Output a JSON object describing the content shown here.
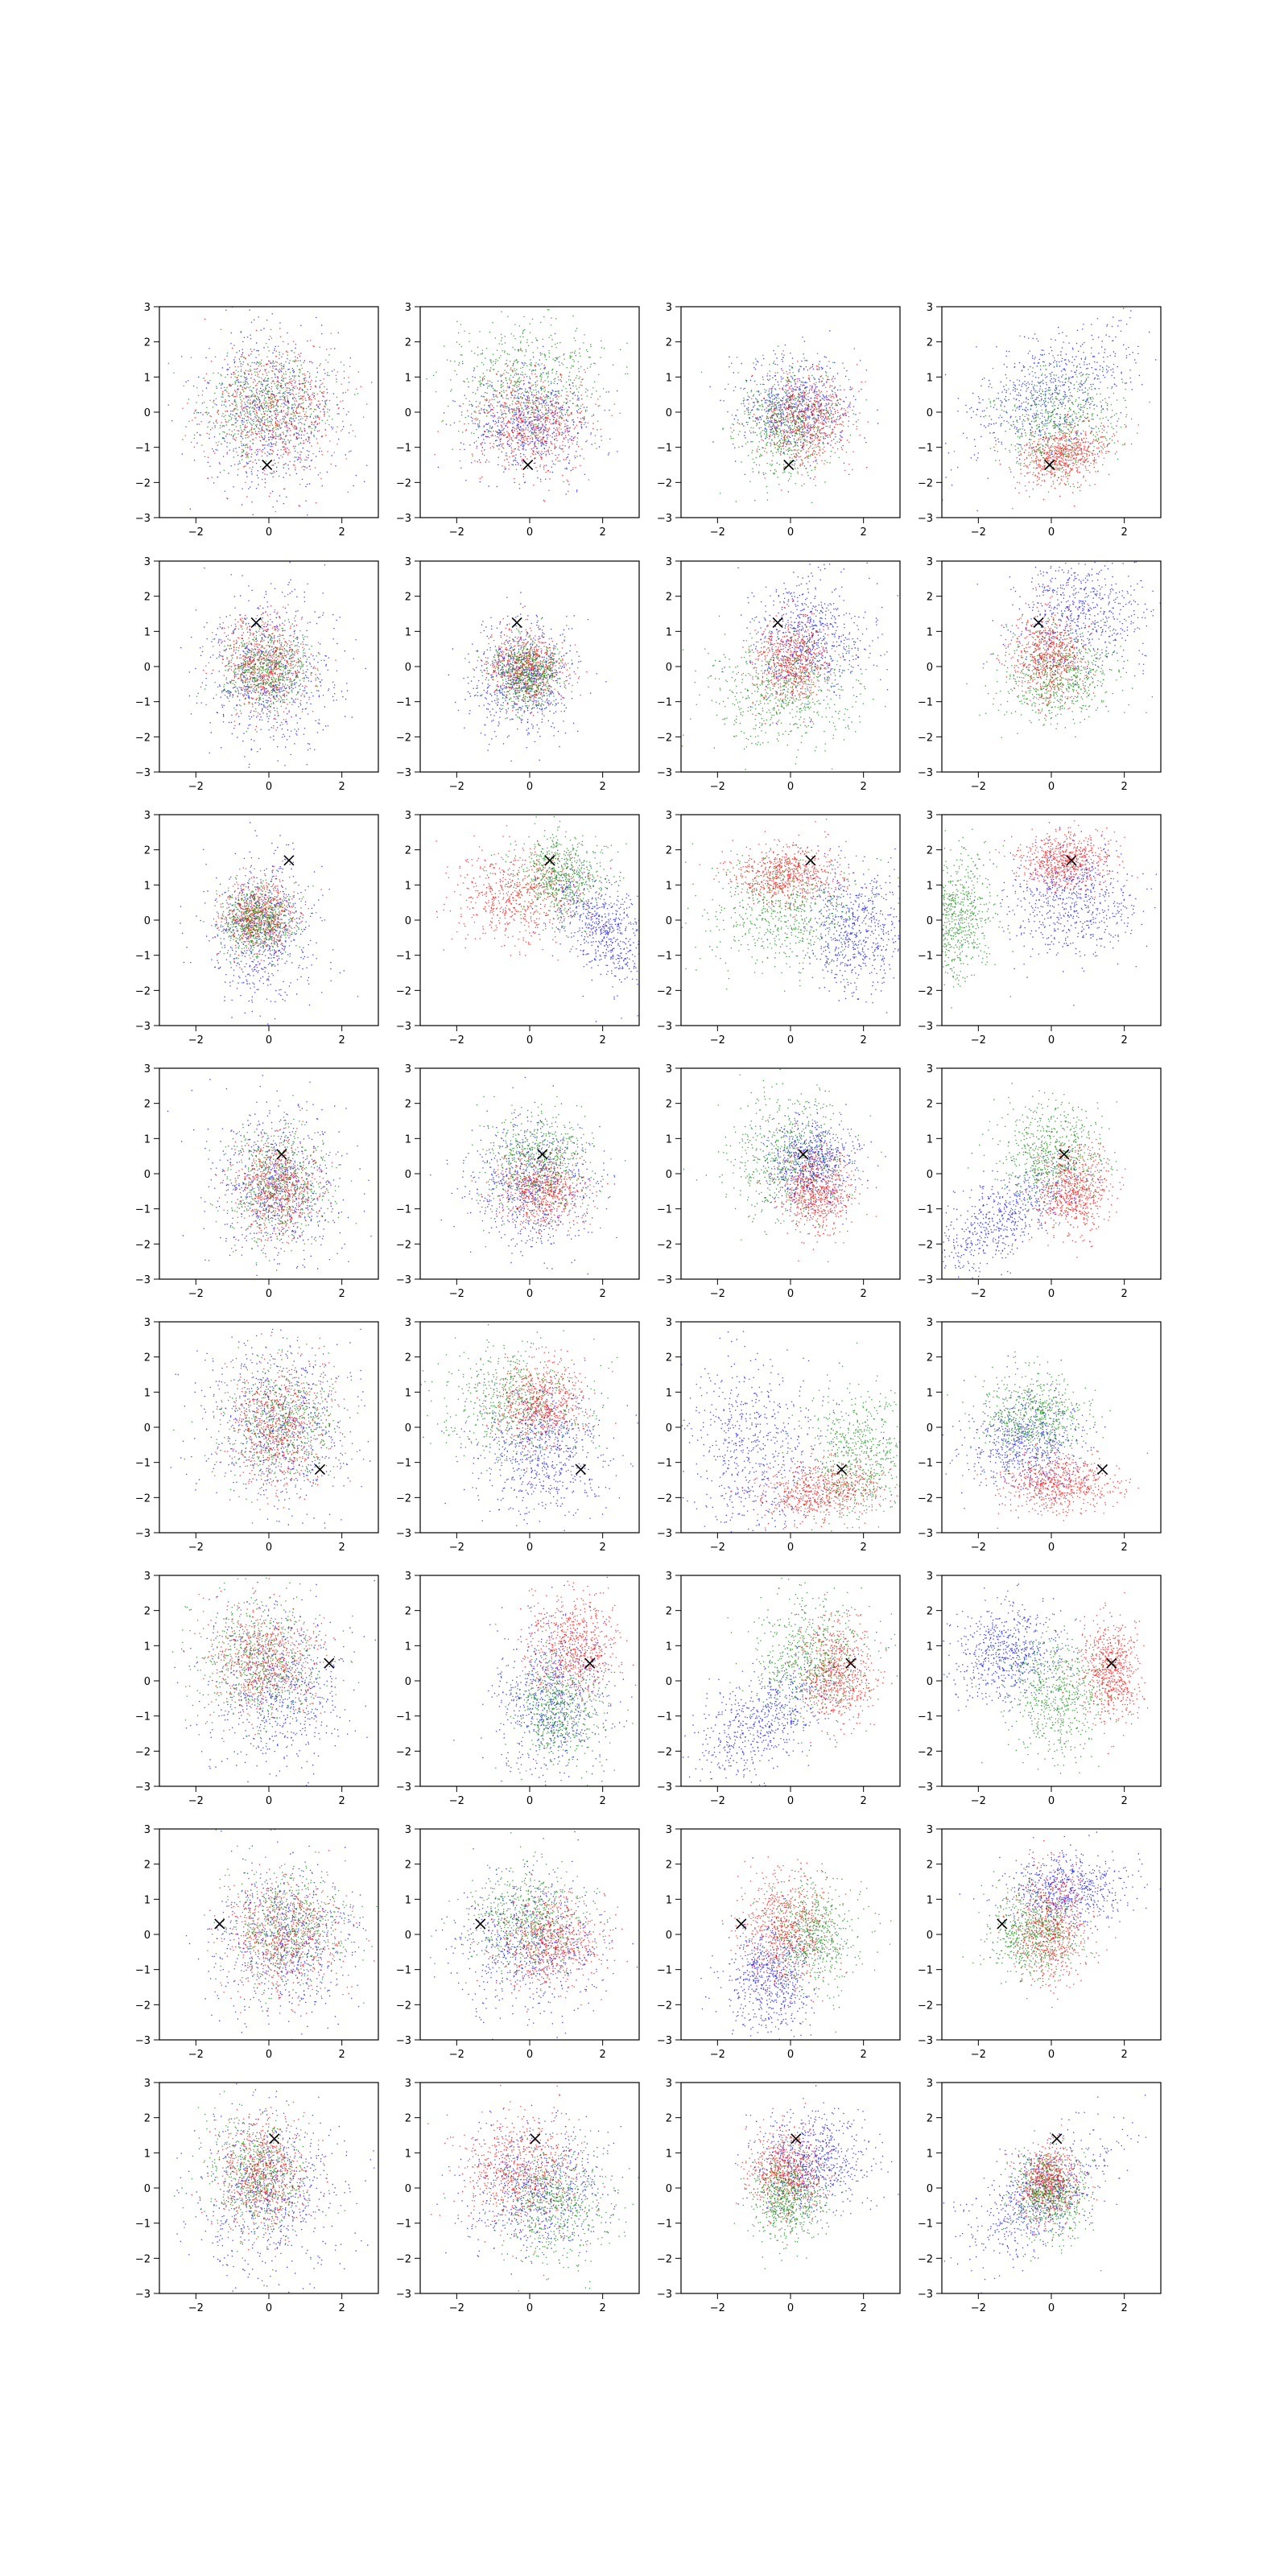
{
  "chart_data": {
    "type": "scatter",
    "grid": false,
    "legend": "none",
    "rows": 8,
    "cols": 4,
    "xlim": [
      -3,
      3
    ],
    "ylim": [
      -3,
      3
    ],
    "xticks": [
      -2,
      0,
      2
    ],
    "yticks": [
      -3,
      -2,
      -1,
      0,
      1,
      2,
      3
    ],
    "xtick_labels": [
      "−2",
      "0",
      "2"
    ],
    "ytick_labels": [
      "−3",
      "−2",
      "−1",
      "0",
      "1",
      "2",
      "3"
    ],
    "colors": {
      "blue": "#0000ff",
      "green": "#008000",
      "red": "#ff0000",
      "marker": "#000000"
    },
    "marker_symbol": "×",
    "marker_points": [
      {
        "x": -0.05,
        "y": -1.5
      },
      {
        "x": -0.35,
        "y": 1.25
      },
      {
        "x": 0.55,
        "y": 1.7
      },
      {
        "x": 0.35,
        "y": 0.55
      },
      {
        "x": 1.4,
        "y": -1.2
      },
      {
        "x": 1.65,
        "y": 0.5
      },
      {
        "x": -1.35,
        "y": 0.3
      },
      {
        "x": 0.15,
        "y": 1.4
      }
    ],
    "points_per_cloud": 650,
    "panels": [
      [
        [
          {
            "color": "blue",
            "mx": 0,
            "my": 0,
            "sx": 1,
            "sy": 1.2,
            "rho": 0
          },
          {
            "color": "green",
            "mx": -0.1,
            "my": 0.2,
            "sx": 0.9,
            "sy": 0.8,
            "rho": 0
          },
          {
            "color": "red",
            "mx": 0.2,
            "my": 0,
            "sx": 0.9,
            "sy": 0.9,
            "rho": 0
          }
        ],
        [
          {
            "color": "green",
            "mx": 0,
            "my": 0.9,
            "sx": 1.1,
            "sy": 0.9,
            "rho": 0
          },
          {
            "color": "blue",
            "mx": 0,
            "my": -0.3,
            "sx": 0.9,
            "sy": 0.8,
            "rho": 0
          },
          {
            "color": "red",
            "mx": 0,
            "my": -0.3,
            "sx": 0.8,
            "sy": 0.7,
            "rho": 0
          }
        ],
        [
          {
            "color": "blue",
            "mx": 0.1,
            "my": 0.2,
            "sx": 0.8,
            "sy": 0.7,
            "rho": 0
          },
          {
            "color": "red",
            "mx": 0.4,
            "my": -0.2,
            "sx": 0.6,
            "sy": 0.7,
            "rho": 0
          },
          {
            "color": "green",
            "mx": -0.1,
            "my": -0.3,
            "sx": 0.7,
            "sy": 0.8,
            "rho": 0
          }
        ],
        [
          {
            "color": "blue",
            "mx": 0,
            "my": 0.6,
            "sx": 1.1,
            "sy": 0.9,
            "rho": 0.5
          },
          {
            "color": "green",
            "mx": 0.2,
            "my": -0.3,
            "sx": 0.8,
            "sy": 0.8,
            "rho": 0
          },
          {
            "color": "red",
            "mx": 0.3,
            "my": -1.2,
            "sx": 0.6,
            "sy": 0.4,
            "rho": 0.3
          }
        ]
      ],
      [
        [
          {
            "color": "blue",
            "mx": 0,
            "my": -0.2,
            "sx": 0.9,
            "sy": 1.1,
            "rho": 0
          },
          {
            "color": "red",
            "mx": -0.1,
            "my": 0.1,
            "sx": 0.6,
            "sy": 0.7,
            "rho": 0
          },
          {
            "color": "green",
            "mx": -0.1,
            "my": -0.1,
            "sx": 0.6,
            "sy": 0.6,
            "rho": 0
          }
        ],
        [
          {
            "color": "blue",
            "mx": -0.2,
            "my": -0.3,
            "sx": 0.7,
            "sy": 0.8,
            "rho": 0
          },
          {
            "color": "red",
            "mx": -0.1,
            "my": 0,
            "sx": 0.5,
            "sy": 0.5,
            "rho": 0
          },
          {
            "color": "green",
            "mx": -0.1,
            "my": -0.2,
            "sx": 0.5,
            "sy": 0.5,
            "rho": 0
          }
        ],
        [
          {
            "color": "blue",
            "mx": 0.5,
            "my": 0.9,
            "sx": 0.8,
            "sy": 0.8,
            "rho": 0
          },
          {
            "color": "green",
            "mx": -0.3,
            "my": -0.6,
            "sx": 1,
            "sy": 0.8,
            "rho": 0
          },
          {
            "color": "red",
            "mx": 0,
            "my": 0.2,
            "sx": 0.5,
            "sy": 0.6,
            "rho": 0
          }
        ],
        [
          {
            "color": "blue",
            "mx": 0.8,
            "my": 1.5,
            "sx": 0.9,
            "sy": 0.8,
            "rho": 0
          },
          {
            "color": "green",
            "mx": 0.2,
            "my": -0.3,
            "sx": 0.8,
            "sy": 0.7,
            "rho": 0
          },
          {
            "color": "red",
            "mx": -0.1,
            "my": 0.3,
            "sx": 0.5,
            "sy": 0.6,
            "rho": 0
          }
        ]
      ],
      [
        [
          {
            "color": "blue",
            "mx": -0.2,
            "my": -0.3,
            "sx": 0.7,
            "sy": 1.1,
            "rho": 0
          },
          {
            "color": "red",
            "mx": -0.3,
            "my": 0.1,
            "sx": 0.5,
            "sy": 0.5,
            "rho": 0
          },
          {
            "color": "green",
            "mx": -0.3,
            "my": 0,
            "sx": 0.5,
            "sy": 0.5,
            "rho": 0
          }
        ],
        [
          {
            "color": "blue",
            "mx": 2,
            "my": -0.2,
            "sx": 0.7,
            "sy": 0.8,
            "rho": -0.5
          },
          {
            "color": "red",
            "mx": -0.3,
            "my": 0.7,
            "sx": 0.9,
            "sy": 0.7,
            "rho": 0
          },
          {
            "color": "green",
            "mx": 0.8,
            "my": 1.3,
            "sx": 0.6,
            "sy": 0.6,
            "rho": 0
          }
        ],
        [
          {
            "color": "blue",
            "mx": 1.8,
            "my": -0.3,
            "sx": 0.7,
            "sy": 0.9,
            "rho": 0
          },
          {
            "color": "green",
            "mx": -0.2,
            "my": 0.2,
            "sx": 1.1,
            "sy": 0.8,
            "rho": 0
          },
          {
            "color": "red",
            "mx": -0.1,
            "my": 1.3,
            "sx": 0.7,
            "sy": 0.4,
            "rho": 0
          }
        ],
        [
          {
            "color": "green",
            "mx": -2.6,
            "my": 0.1,
            "sx": 0.5,
            "sy": 0.9,
            "rho": 0
          },
          {
            "color": "blue",
            "mx": 0.6,
            "my": 0.6,
            "sx": 0.9,
            "sy": 0.8,
            "rho": 0
          },
          {
            "color": "red",
            "mx": 0.4,
            "my": 1.7,
            "sx": 0.6,
            "sy": 0.4,
            "rho": 0
          }
        ]
      ],
      [
        [
          {
            "color": "blue",
            "mx": 0.2,
            "my": -0.3,
            "sx": 0.9,
            "sy": 1.1,
            "rho": 0
          },
          {
            "color": "green",
            "mx": 0.2,
            "my": -0.3,
            "sx": 0.7,
            "sy": 0.8,
            "rho": 0
          },
          {
            "color": "red",
            "mx": 0.2,
            "my": -0.4,
            "sx": 0.6,
            "sy": 0.7,
            "rho": 0
          }
        ],
        [
          {
            "color": "blue",
            "mx": 0,
            "my": -0.3,
            "sx": 0.9,
            "sy": 0.9,
            "rho": 0
          },
          {
            "color": "green",
            "mx": 0.2,
            "my": 0.3,
            "sx": 0.7,
            "sy": 0.7,
            "rho": 0
          },
          {
            "color": "red",
            "mx": 0.3,
            "my": -0.5,
            "sx": 0.6,
            "sy": 0.5,
            "rho": 0
          }
        ],
        [
          {
            "color": "green",
            "mx": -0.1,
            "my": 0.4,
            "sx": 0.8,
            "sy": 0.9,
            "rho": 0
          },
          {
            "color": "blue",
            "mx": 0.6,
            "my": 0.3,
            "sx": 0.6,
            "sy": 0.6,
            "rho": 0
          },
          {
            "color": "red",
            "mx": 0.7,
            "my": -0.5,
            "sx": 0.5,
            "sy": 0.6,
            "rho": 0
          }
        ],
        [
          {
            "color": "blue",
            "mx": -1.3,
            "my": -1.2,
            "sx": 1,
            "sy": 0.8,
            "rho": 0.7
          },
          {
            "color": "green",
            "mx": 0,
            "my": 0.6,
            "sx": 0.7,
            "sy": 0.7,
            "rho": 0
          },
          {
            "color": "red",
            "mx": 0.6,
            "my": -0.5,
            "sx": 0.5,
            "sy": 0.6,
            "rho": 0
          }
        ]
      ],
      [
        [
          {
            "color": "blue",
            "mx": 0.3,
            "my": 0,
            "sx": 1,
            "sy": 1.2,
            "rho": 0
          },
          {
            "color": "green",
            "mx": 0.3,
            "my": 0.2,
            "sx": 0.8,
            "sy": 0.9,
            "rho": 0
          },
          {
            "color": "red",
            "mx": 0.2,
            "my": 0,
            "sx": 0.7,
            "sy": 0.9,
            "rho": 0
          }
        ],
        [
          {
            "color": "green",
            "mx": -0.4,
            "my": 0.7,
            "sx": 1,
            "sy": 0.8,
            "rho": 0
          },
          {
            "color": "blue",
            "mx": 0.4,
            "my": -0.7,
            "sx": 0.9,
            "sy": 0.9,
            "rho": 0
          },
          {
            "color": "red",
            "mx": 0.3,
            "my": 0.7,
            "sx": 0.6,
            "sy": 0.6,
            "rho": 0
          }
        ],
        [
          {
            "color": "blue",
            "mx": -1,
            "my": -0.5,
            "sx": 1,
            "sy": 1.3,
            "rho": 0
          },
          {
            "color": "green",
            "mx": 1.8,
            "my": -0.8,
            "sx": 0.7,
            "sy": 0.9,
            "rho": 0
          },
          {
            "color": "red",
            "mx": 0.8,
            "my": -1.8,
            "sx": 0.8,
            "sy": 0.4,
            "rho": 0.2
          }
        ],
        [
          {
            "color": "blue",
            "mx": -0.7,
            "my": -0.5,
            "sx": 0.8,
            "sy": 0.7,
            "rho": 0
          },
          {
            "color": "green",
            "mx": -0.5,
            "my": 0.3,
            "sx": 0.7,
            "sy": 0.6,
            "rho": 0
          },
          {
            "color": "red",
            "mx": 0.2,
            "my": -1.6,
            "sx": 0.8,
            "sy": 0.4,
            "rho": 0
          }
        ]
      ],
      [
        [
          {
            "color": "blue",
            "mx": 0.2,
            "my": -0.3,
            "sx": 1,
            "sy": 1.2,
            "rho": 0
          },
          {
            "color": "green",
            "mx": -0.2,
            "my": 0.5,
            "sx": 0.8,
            "sy": 0.9,
            "rho": 0
          },
          {
            "color": "red",
            "mx": -0.2,
            "my": 0.6,
            "sx": 0.7,
            "sy": 0.8,
            "rho": 0
          }
        ],
        [
          {
            "color": "blue",
            "mx": 0.6,
            "my": -0.5,
            "sx": 0.8,
            "sy": 1.1,
            "rho": 0
          },
          {
            "color": "green",
            "mx": 0.7,
            "my": -0.8,
            "sx": 0.6,
            "sy": 0.8,
            "rho": 0
          },
          {
            "color": "red",
            "mx": 1.2,
            "my": 1,
            "sx": 0.6,
            "sy": 0.7,
            "rho": 0
          }
        ],
        [
          {
            "color": "blue",
            "mx": -0.7,
            "my": -1.1,
            "sx": 1,
            "sy": 0.9,
            "rho": 0.6
          },
          {
            "color": "green",
            "mx": 0.6,
            "my": 0.7,
            "sx": 0.8,
            "sy": 0.8,
            "rho": 0
          },
          {
            "color": "red",
            "mx": 1.2,
            "my": 0.2,
            "sx": 0.5,
            "sy": 0.7,
            "rho": 0
          }
        ],
        [
          {
            "color": "blue",
            "mx": -1.3,
            "my": 0.8,
            "sx": 0.8,
            "sy": 0.7,
            "rho": 0
          },
          {
            "color": "green",
            "mx": 0.1,
            "my": -0.4,
            "sx": 0.7,
            "sy": 0.8,
            "rho": 0
          },
          {
            "color": "red",
            "mx": 1.6,
            "my": 0.3,
            "sx": 0.4,
            "sy": 0.7,
            "rho": 0
          }
        ]
      ],
      [
        [
          {
            "color": "blue",
            "mx": 0.4,
            "my": -0.2,
            "sx": 1,
            "sy": 1.1,
            "rho": 0
          },
          {
            "color": "green",
            "mx": 0.5,
            "my": 0.2,
            "sx": 0.8,
            "sy": 0.8,
            "rho": 0
          },
          {
            "color": "red",
            "mx": 0.4,
            "my": 0,
            "sx": 0.8,
            "sy": 0.8,
            "rho": 0
          }
        ],
        [
          {
            "color": "blue",
            "mx": 0,
            "my": -0.3,
            "sx": 1,
            "sy": 1,
            "rho": 0
          },
          {
            "color": "green",
            "mx": -0.1,
            "my": 0.4,
            "sx": 0.8,
            "sy": 0.7,
            "rho": 0
          },
          {
            "color": "red",
            "mx": 0.6,
            "my": -0.2,
            "sx": 0.7,
            "sy": 0.6,
            "rho": 0
          }
        ],
        [
          {
            "color": "blue",
            "mx": -0.6,
            "my": -1.2,
            "sx": 0.6,
            "sy": 0.8,
            "rho": 0
          },
          {
            "color": "green",
            "mx": 0.6,
            "my": 0,
            "sx": 0.6,
            "sy": 0.7,
            "rho": 0
          },
          {
            "color": "red",
            "mx": -0.2,
            "my": 0.2,
            "sx": 0.6,
            "sy": 0.8,
            "rho": 0
          }
        ],
        [
          {
            "color": "blue",
            "mx": 0.4,
            "my": 1.3,
            "sx": 0.8,
            "sy": 0.5,
            "rho": 0
          },
          {
            "color": "green",
            "mx": -0.5,
            "my": 0.1,
            "sx": 0.6,
            "sy": 0.6,
            "rho": 0
          },
          {
            "color": "red",
            "mx": 0,
            "my": 0.2,
            "sx": 0.5,
            "sy": 0.8,
            "rho": 0
          }
        ]
      ],
      [
        [
          {
            "color": "blue",
            "mx": 0,
            "my": -0.1,
            "sx": 1,
            "sy": 1.2,
            "rho": 0
          },
          {
            "color": "green",
            "mx": -0.3,
            "my": 0.4,
            "sx": 0.7,
            "sy": 0.8,
            "rho": 0
          },
          {
            "color": "red",
            "mx": -0.2,
            "my": 0.4,
            "sx": 0.6,
            "sy": 0.8,
            "rho": 0
          }
        ],
        [
          {
            "color": "blue",
            "mx": 0.2,
            "my": 0,
            "sx": 1,
            "sy": 0.9,
            "rho": 0
          },
          {
            "color": "green",
            "mx": 0.6,
            "my": -0.4,
            "sx": 0.8,
            "sy": 0.8,
            "rho": 0
          },
          {
            "color": "red",
            "mx": -0.3,
            "my": 0.5,
            "sx": 0.8,
            "sy": 0.8,
            "rho": 0
          }
        ],
        [
          {
            "color": "blue",
            "mx": 0.6,
            "my": 0.8,
            "sx": 0.8,
            "sy": 0.7,
            "rho": 0
          },
          {
            "color": "red",
            "mx": -0.1,
            "my": 0.5,
            "sx": 0.5,
            "sy": 0.6,
            "rho": 0
          },
          {
            "color": "green",
            "mx": -0.1,
            "my": -0.3,
            "sx": 0.5,
            "sy": 0.6,
            "rho": 0
          }
        ],
        [
          {
            "color": "blue",
            "mx": -0.4,
            "my": -0.2,
            "sx": 1,
            "sy": 0.9,
            "rho": 0.6
          },
          {
            "color": "red",
            "mx": -0.1,
            "my": 0.2,
            "sx": 0.4,
            "sy": 0.5,
            "rho": 0
          },
          {
            "color": "green",
            "mx": 0,
            "my": -0.2,
            "sx": 0.5,
            "sy": 0.6,
            "rho": 0
          }
        ]
      ]
    ]
  }
}
